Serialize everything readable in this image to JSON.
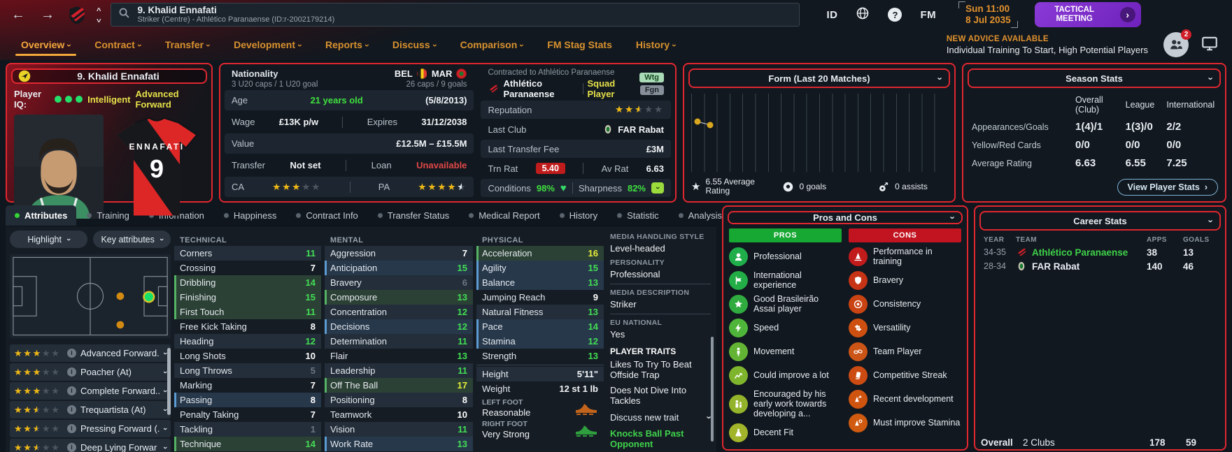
{
  "titlebar": {
    "back": "←",
    "forward": "→",
    "search_title": "9. Khalid Ennafati",
    "search_subtitle": "Striker (Centre) - Athlético Paranaense (ID:r-2002179214)",
    "icon_id": "ID",
    "icon_help": "?",
    "icon_fm": "FM",
    "date_line1": "Sun 11:00",
    "date_line2": "8 Jul 2035",
    "tactical_button": "TACTICAL MEETING"
  },
  "nav": {
    "tabs": [
      {
        "label": "Overview",
        "dropdown": true,
        "active": true
      },
      {
        "label": "Contract",
        "dropdown": true
      },
      {
        "label": "Transfer",
        "dropdown": true
      },
      {
        "label": "Development",
        "dropdown": true
      },
      {
        "label": "Reports",
        "dropdown": true
      },
      {
        "label": "Discuss",
        "dropdown": true
      },
      {
        "label": "Comparison",
        "dropdown": true
      },
      {
        "label": "FM Stag Stats",
        "dropdown": false
      },
      {
        "label": "History",
        "dropdown": true
      }
    ],
    "advice_heading": "NEW ADVICE AVAILABLE",
    "advice_text": "Individual Training To Start, High Potential Players",
    "advice_badge": "2"
  },
  "player_card": {
    "name": "9. Khalid Ennafati",
    "iq_label": "Player IQ:",
    "iq_dots": 3,
    "iq_text1": "Intelligent",
    "iq_text2": "Advanced Forward",
    "jersey_name": "ENNAFATI",
    "jersey_number": "9"
  },
  "info": {
    "nationality_label": "Nationality",
    "nationality_sub": "3 U20 caps / 1 U20 goal",
    "nat1": "BEL",
    "nat2": "MAR",
    "caps": "26 caps / 9 goals",
    "age_label": "Age",
    "age_value": "21 years old",
    "birth_date": "(5/8/2013)",
    "wage_label": "Wage",
    "wage_value": "£13K p/w",
    "expires_label": "Expires",
    "expires_value": "31/12/2038",
    "value_label": "Value",
    "value_value": "£12.5M – £15.5M",
    "transfer_label": "Transfer",
    "transfer_value": "Not set",
    "loan_label": "Loan",
    "loan_value": "Unavailable",
    "ca_label": "CA",
    "ca_stars": 3,
    "pa_label": "PA",
    "pa_stars": 4.5,
    "contracted_to": "Contracted to Athlético Paranaense",
    "club_name": "Athlético Paranaense",
    "squad_status": "Squad Player",
    "badge_wtg": "Wtg",
    "badge_fgn": "Fgn",
    "reputation_label": "Reputation",
    "reputation_stars": 2.5,
    "last_club_label": "Last Club",
    "last_club": "FAR Rabat",
    "fee_label": "Last Transfer Fee",
    "fee_value": "£3M",
    "trn_rat_label": "Trn Rat",
    "trn_rat_value": "5.40",
    "av_rat_label": "Av Rat",
    "av_rat_value": "6.63",
    "conditions_label": "Conditions",
    "conditions_value": "98%",
    "sharpness_label": "Sharpness",
    "sharpness_value": "82%"
  },
  "form": {
    "title": "Form (Last 20 Matches)",
    "avg_rating": "6.55 Average Rating",
    "goals": "0 goals",
    "assists": "0 assists",
    "chart_data": {
      "type": "line",
      "title": "Form (Last 20 Matches)",
      "x": [
        1,
        2
      ],
      "values": [
        6.6,
        6.5
      ],
      "x_range": [
        1,
        20
      ],
      "y_range": [
        5,
        7.5
      ],
      "grid": "vertical",
      "point_color": "#d9a71f"
    }
  },
  "season_stats": {
    "title": "Season Stats",
    "columns": [
      "Overall (Club)",
      "League",
      "International"
    ],
    "rows": [
      {
        "label": "Appearances/Goals",
        "values": [
          "1(4)/1",
          "1(3)/0",
          "2/2"
        ]
      },
      {
        "label": "Yellow/Red Cards",
        "values": [
          "0/0",
          "0/0",
          "0/0"
        ]
      },
      {
        "label": "Average Rating",
        "values": [
          "6.63",
          "6.55",
          "7.25"
        ]
      }
    ],
    "button": "View Player Stats"
  },
  "sub_tabs": [
    {
      "label": "Attributes",
      "active": true
    },
    {
      "label": "Training"
    },
    {
      "label": "Information"
    },
    {
      "label": "Happiness"
    },
    {
      "label": "Contract Info"
    },
    {
      "label": "Transfer Status"
    },
    {
      "label": "Medical Report"
    },
    {
      "label": "History"
    },
    {
      "label": "Statistic"
    },
    {
      "label": "Analysis"
    }
  ],
  "sidebar": {
    "highlight_label": "Highlight",
    "key_attributes_label": "Key attributes",
    "roles": [
      {
        "stars": 3,
        "label": "Advanced Forward..."
      },
      {
        "stars": 3,
        "label": "Poacher (At)"
      },
      {
        "stars": 3,
        "label": "Complete Forward..."
      },
      {
        "stars": 2.5,
        "label": "Trequartista (At)"
      },
      {
        "stars": 2.5,
        "label": "Pressing Forward (..."
      },
      {
        "stars": 2.5,
        "label": "Deep Lying Forwar"
      }
    ]
  },
  "attributes": {
    "technical_header": "TECHNICAL",
    "mental_header": "MENTAL",
    "physical_header": "PHYSICAL",
    "technical": [
      {
        "name": "Corners",
        "value": 11
      },
      {
        "name": "Crossing",
        "value": 7
      },
      {
        "name": "Dribbling",
        "value": 14,
        "hl": "green"
      },
      {
        "name": "Finishing",
        "value": 15,
        "hl": "green"
      },
      {
        "name": "First Touch",
        "value": 11,
        "hl": "green"
      },
      {
        "name": "Free Kick Taking",
        "value": 8
      },
      {
        "name": "Heading",
        "value": 12
      },
      {
        "name": "Long Shots",
        "value": 10
      },
      {
        "name": "Long Throws",
        "value": 5
      },
      {
        "name": "Marking",
        "value": 7
      },
      {
        "name": "Passing",
        "value": 8,
        "hl": "blue"
      },
      {
        "name": "Penalty Taking",
        "value": 7
      },
      {
        "name": "Tackling",
        "value": 1
      },
      {
        "name": "Technique",
        "value": 14,
        "hl": "green"
      }
    ],
    "mental": [
      {
        "name": "Aggression",
        "value": 7
      },
      {
        "name": "Anticipation",
        "value": 15,
        "hl": "blue"
      },
      {
        "name": "Bravery",
        "value": 6
      },
      {
        "name": "Composure",
        "value": 13,
        "hl": "green"
      },
      {
        "name": "Concentration",
        "value": 12
      },
      {
        "name": "Decisions",
        "value": 12,
        "hl": "blue"
      },
      {
        "name": "Determination",
        "value": 11
      },
      {
        "name": "Flair",
        "value": 13
      },
      {
        "name": "Leadership",
        "value": 11
      },
      {
        "name": "Off The Ball",
        "value": 17,
        "hl": "green"
      },
      {
        "name": "Positioning",
        "value": 8
      },
      {
        "name": "Teamwork",
        "value": 10
      },
      {
        "name": "Vision",
        "value": 11
      },
      {
        "name": "Work Rate",
        "value": 13,
        "hl": "blue"
      }
    ],
    "physical": [
      {
        "name": "Acceleration",
        "value": 16,
        "hl": "green"
      },
      {
        "name": "Agility",
        "value": 15,
        "hl": "blue"
      },
      {
        "name": "Balance",
        "value": 13,
        "hl": "blue"
      },
      {
        "name": "Jumping Reach",
        "value": 9
      },
      {
        "name": "Natural Fitness",
        "value": 13
      },
      {
        "name": "Pace",
        "value": 14,
        "hl": "blue"
      },
      {
        "name": "Stamina",
        "value": 12,
        "hl": "blue"
      },
      {
        "name": "Strength",
        "value": 13
      }
    ],
    "height_label": "Height",
    "height_value": "5'11\"",
    "weight_label": "Weight",
    "weight_value": "12 st 1 lb",
    "left_foot_label": "LEFT FOOT",
    "left_foot_value": "Reasonable",
    "right_foot_label": "RIGHT FOOT",
    "right_foot_value": "Very Strong"
  },
  "details": {
    "media_style_label": "MEDIA HANDLING STYLE",
    "media_style": "Level-headed",
    "personality_label": "PERSONALITY",
    "personality": "Professional",
    "media_desc_label": "MEDIA DESCRIPTION",
    "media_desc": "Striker",
    "eu_label": "EU NATIONAL",
    "eu": "Yes",
    "traits_label": "PLAYER TRAITS",
    "trait1": "Likes To Try To Beat Offside Trap",
    "trait2": "Does Not Dive Into Tackles",
    "discuss": "Discuss new trait",
    "new_trait": "Knocks Ball Past Opponent"
  },
  "pros_cons": {
    "title": "Pros and Cons",
    "pros_header": "PROS",
    "cons_header": "CONS",
    "pros_color": "#17a733",
    "cons_color": "#c11320",
    "pros": [
      {
        "label": "Professional",
        "icon": "head-icon",
        "color": "#1fae4a"
      },
      {
        "label": "International experience",
        "icon": "flag-icon",
        "color": "#23ad46"
      },
      {
        "label": "Good Brasileirão Assaí player",
        "icon": "star-icon",
        "color": "#2fab3f"
      },
      {
        "label": "Speed",
        "icon": "bolt-icon",
        "color": "#4fb53a"
      },
      {
        "label": "Movement",
        "icon": "person-icon",
        "color": "#63b434"
      },
      {
        "label": "Could improve a lot",
        "icon": "arrow-up-icon",
        "color": "#7fb42d"
      },
      {
        "label": "Encouraged by his early work towards developing a...",
        "icon": "mentor-icon",
        "color": "#93b42a"
      },
      {
        "label": "Decent Fit",
        "icon": "flask-icon",
        "color": "#a2b42a"
      }
    ],
    "cons": [
      {
        "label": "Performance in training",
        "icon": "training-cone-icon",
        "color": "#c21b1b"
      },
      {
        "label": "Bravery",
        "icon": "shield-icon",
        "color": "#c63415"
      },
      {
        "label": "Consistency",
        "icon": "target-icon",
        "color": "#ca4413"
      },
      {
        "label": "Versatility",
        "icon": "versatility-arrows-icon",
        "color": "#cd5011"
      },
      {
        "label": "Team Player",
        "icon": "chain-icon",
        "color": "#cb5416"
      },
      {
        "label": "Competitive Streak",
        "icon": "card-icon",
        "color": "#cc4b12"
      },
      {
        "label": "Recent development",
        "icon": "cone-arrow-icon",
        "color": "#cf5410"
      },
      {
        "label": "Must improve Stamina",
        "icon": "cone-ring-icon",
        "color": "#d05a0f"
      }
    ]
  },
  "career_stats": {
    "title": "Career Stats",
    "columns": [
      "YEAR",
      "TEAM",
      "APPS",
      "GOALS"
    ],
    "rows": [
      {
        "year": "34-35",
        "team": "Athlético Paranaense",
        "apps": "38",
        "goals": "13",
        "current": true
      },
      {
        "year": "28-34",
        "team": "FAR Rabat",
        "apps": "140",
        "goals": "46",
        "current": false
      }
    ],
    "overall_label": "Overall",
    "overall_clubs": "2 Clubs",
    "overall_apps": "178",
    "overall_goals": "59"
  }
}
